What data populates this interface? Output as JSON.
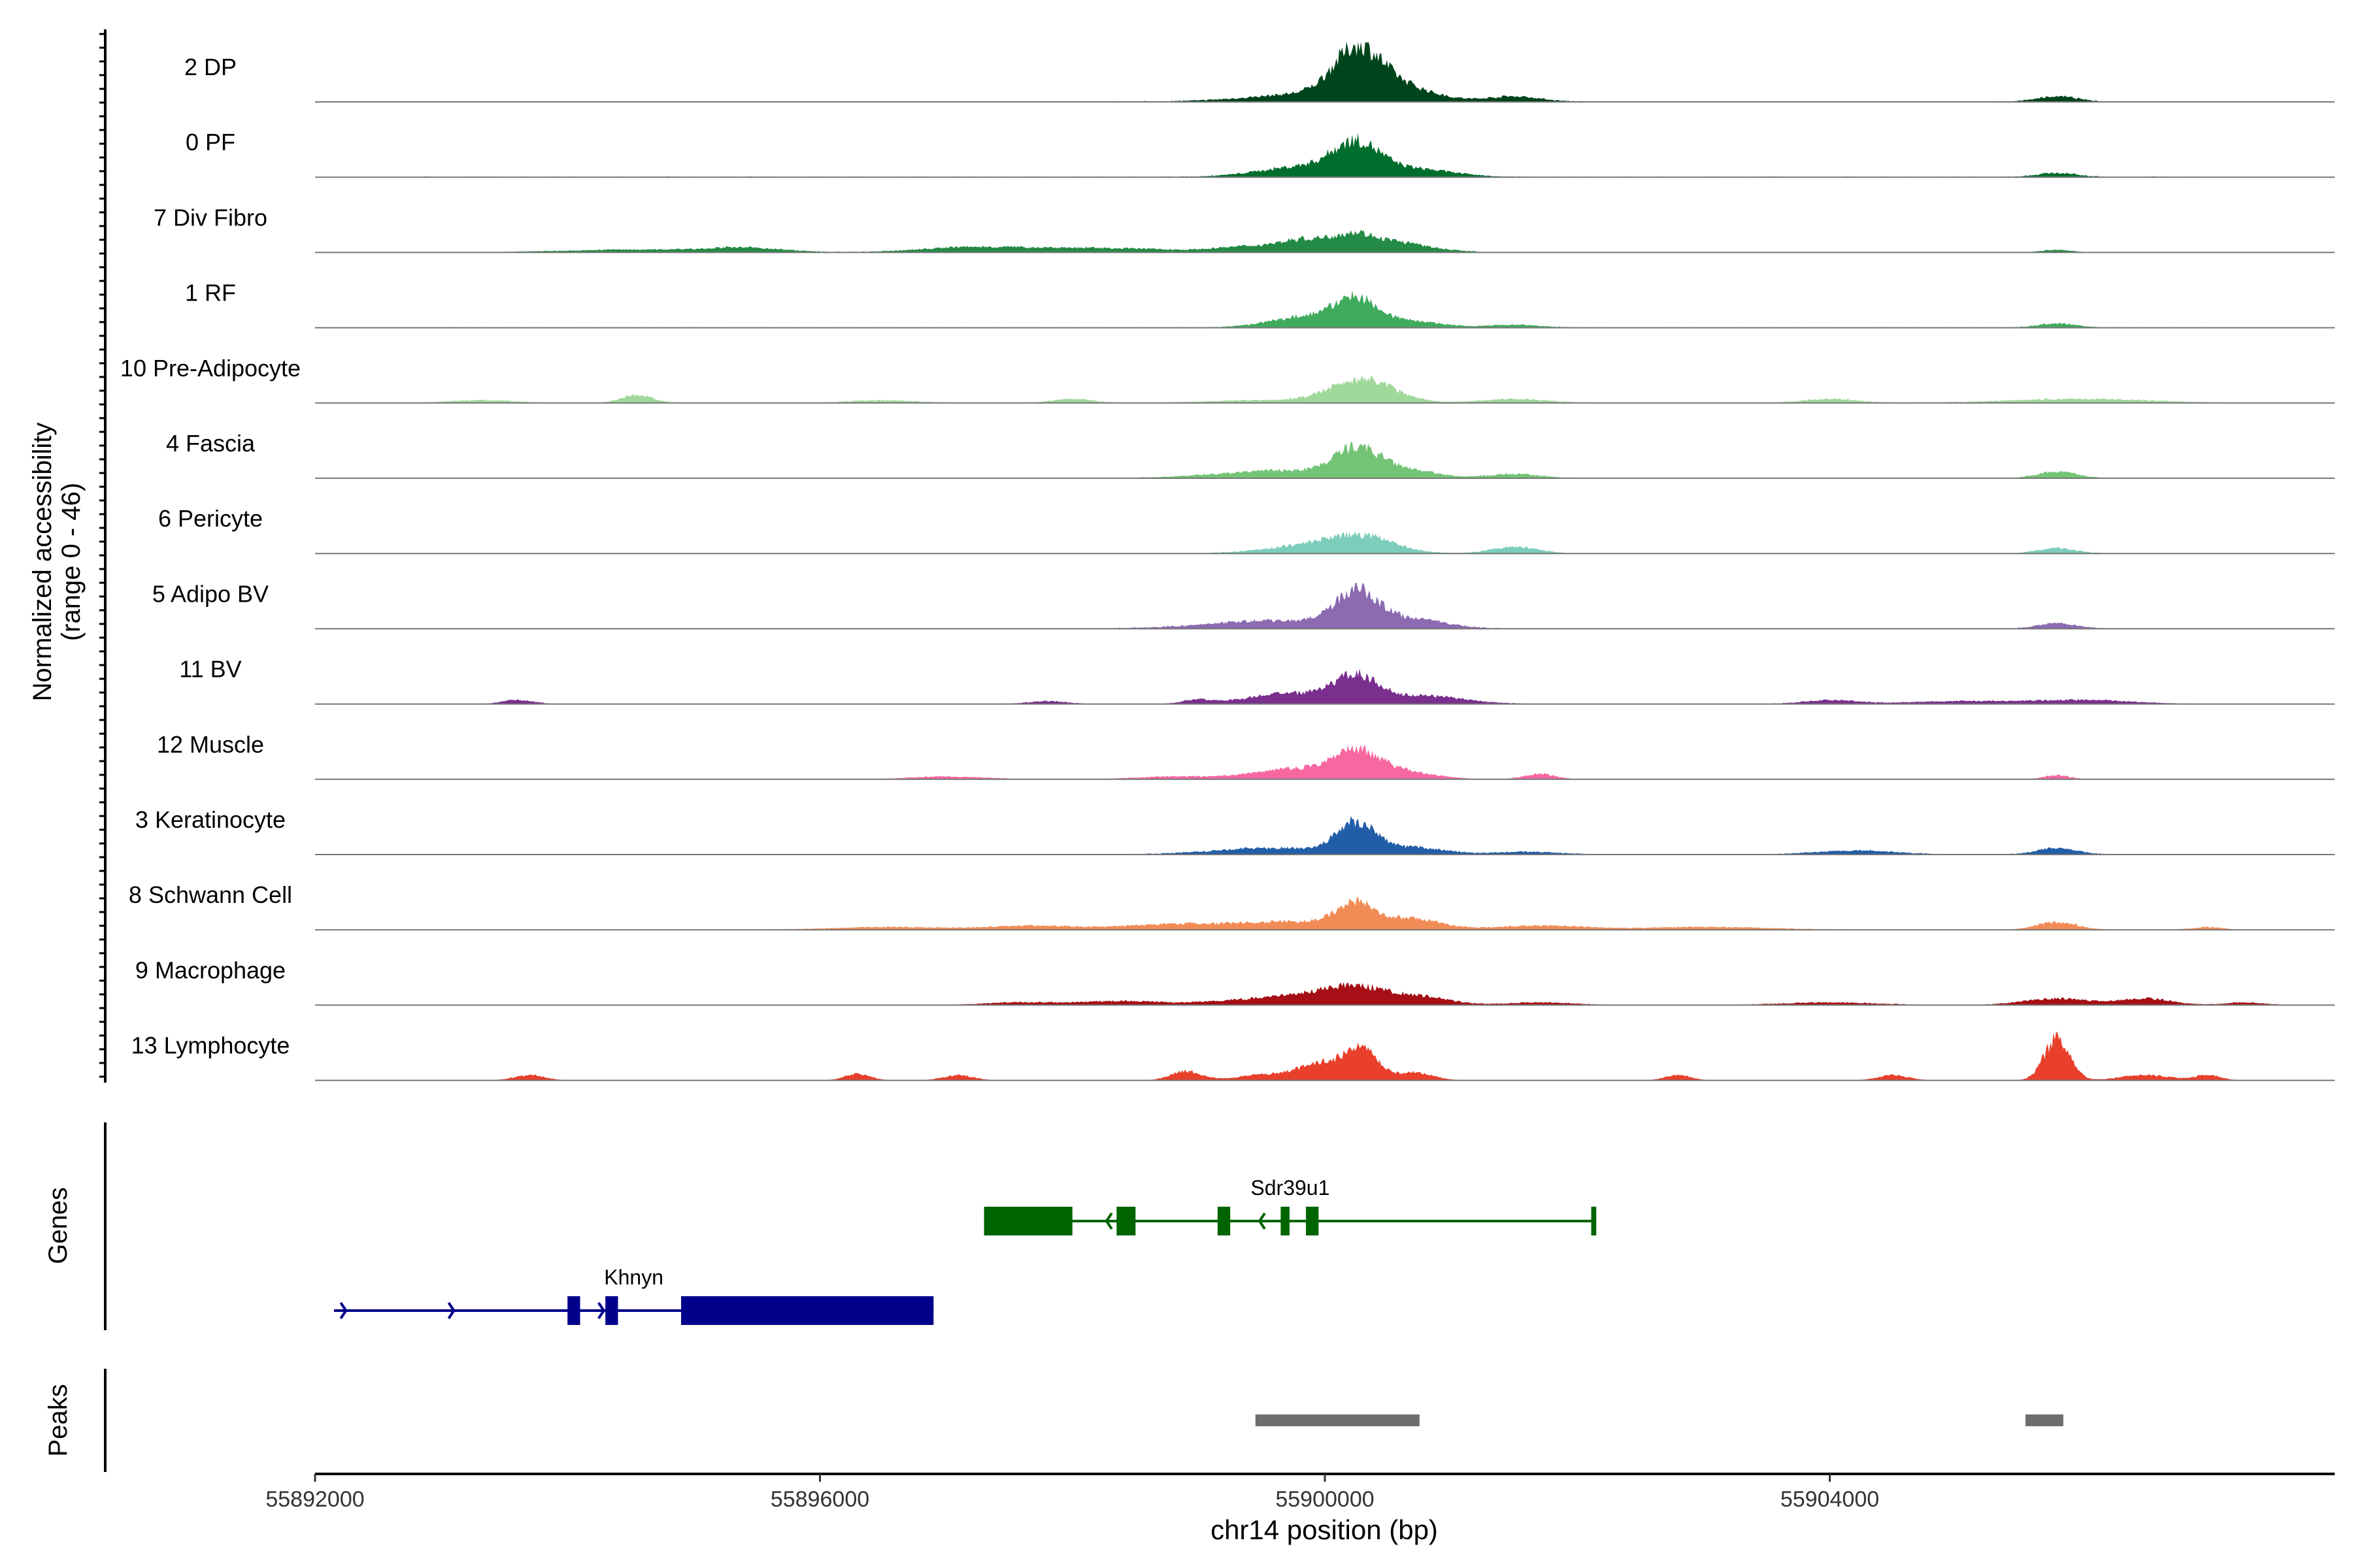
{
  "chart_data": {
    "type": "area",
    "title": "",
    "ylabel": "Normalized accessibility",
    "ylabel_range": "(range 0 - 46)",
    "xlabel": "chr14 position (bp)",
    "xlim": [
      55892000,
      55908000
    ],
    "ylim": [
      0,
      46
    ],
    "x_ticks": [
      55892000,
      55896000,
      55900000,
      55904000
    ],
    "x_tick_labels": [
      "55892000",
      "55896000",
      "55900000",
      "55904000"
    ],
    "tracks": [
      {
        "name": "2 DP",
        "color": "#00441b",
        "peaks": [
          [
            55899950,
            6,
            500
          ],
          [
            55900250,
            30,
            180
          ],
          [
            55900500,
            12,
            300
          ],
          [
            55901500,
            4,
            200
          ],
          [
            55905800,
            4,
            160
          ]
        ],
        "noise": [
          55894000,
          55907000,
          0.5
        ]
      },
      {
        "name": "0 PF",
        "color": "#006d2c",
        "peaks": [
          [
            55899850,
            8,
            350
          ],
          [
            55900250,
            22,
            180
          ],
          [
            55900700,
            6,
            300
          ],
          [
            55905800,
            3,
            150
          ]
        ],
        "noise": [
          55892800,
          55907000,
          0.5
        ]
      },
      {
        "name": "7 Div Fibro",
        "color": "#238b45",
        "peaks": [
          [
            55894500,
            2,
            600
          ],
          [
            55895400,
            3,
            300
          ],
          [
            55897100,
            3,
            350
          ],
          [
            55897800,
            3,
            450
          ],
          [
            55898600,
            2,
            400
          ],
          [
            55899300,
            3,
            200
          ],
          [
            55899850,
            10,
            250
          ],
          [
            55900250,
            11,
            160
          ],
          [
            55900600,
            7,
            200
          ],
          [
            55901000,
            1,
            150
          ],
          [
            55905800,
            2,
            120
          ]
        ],
        "noise": [
          55894200,
          55901200,
          0.4
        ]
      },
      {
        "name": "1 RF",
        "color": "#41ab5d",
        "peaks": [
          [
            55899900,
            9,
            300
          ],
          [
            55900250,
            18,
            160
          ],
          [
            55900650,
            5,
            250
          ],
          [
            55901500,
            2,
            200
          ],
          [
            55905800,
            3,
            150
          ]
        ],
        "noise": [
          55893000,
          55907000,
          0.4
        ]
      },
      {
        "name": "10 Pre-Adipocyte",
        "color": "#a1d99b",
        "peaks": [
          [
            55893300,
            2,
            250
          ],
          [
            55894550,
            6,
            120
          ],
          [
            55896500,
            2,
            250
          ],
          [
            55898000,
            3,
            150
          ],
          [
            55899500,
            2,
            400
          ],
          [
            55900300,
            18,
            250
          ],
          [
            55901500,
            3,
            250
          ],
          [
            55904000,
            3,
            200
          ],
          [
            55906000,
            3,
            550
          ]
        ],
        "noise": [
          55893000,
          55906500,
          0.3
        ]
      },
      {
        "name": "4 Fascia",
        "color": "#74c476",
        "peaks": [
          [
            55899700,
            6,
            500
          ],
          [
            55900250,
            19,
            170
          ],
          [
            55900600,
            6,
            250
          ],
          [
            55901500,
            3,
            200
          ],
          [
            55905800,
            5,
            150
          ]
        ],
        "noise": [
          55893000,
          55907000,
          0.4
        ]
      },
      {
        "name": "6 Pericyte",
        "color": "#7ccdbb",
        "peaks": [
          [
            55899900,
            6,
            350
          ],
          [
            55900300,
            11,
            250
          ],
          [
            55901500,
            5,
            180
          ],
          [
            55905800,
            4,
            150
          ]
        ],
        "noise": [
          55893000,
          55906500,
          0.3
        ]
      },
      {
        "name": "5 Adipo BV",
        "color": "#8c6bb1",
        "peaks": [
          [
            55899600,
            6,
            500
          ],
          [
            55900250,
            26,
            170
          ],
          [
            55900700,
            7,
            250
          ],
          [
            55905800,
            4,
            150
          ]
        ],
        "noise": [
          55892800,
          55907000,
          0.5
        ]
      },
      {
        "name": "11 BV",
        "color": "#7a2f8f",
        "peaks": [
          [
            55893600,
            3,
            120
          ],
          [
            55897800,
            2,
            150
          ],
          [
            55899000,
            3,
            120
          ],
          [
            55899700,
            8,
            300
          ],
          [
            55900250,
            20,
            180
          ],
          [
            55900800,
            6,
            300
          ],
          [
            55904000,
            3,
            200
          ],
          [
            55905000,
            2,
            400
          ],
          [
            55906000,
            3,
            400
          ]
        ],
        "noise": [
          55893500,
          55906300,
          0.3
        ]
      },
      {
        "name": "12 Muscle",
        "color": "#f768a1",
        "peaks": [
          [
            55897000,
            2,
            300
          ],
          [
            55898800,
            2,
            300
          ],
          [
            55899800,
            8,
            350
          ],
          [
            55900250,
            17,
            180
          ],
          [
            55900600,
            6,
            250
          ],
          [
            55901700,
            4,
            120
          ],
          [
            55905800,
            3,
            100
          ]
        ],
        "noise": [
          55896800,
          55906000,
          0.2
        ]
      },
      {
        "name": "3 Keratinocyte",
        "color": "#225ea8",
        "peaks": [
          [
            55899600,
            5,
            450
          ],
          [
            55900250,
            23,
            150
          ],
          [
            55900700,
            5,
            250
          ],
          [
            55901600,
            2,
            250
          ],
          [
            55904200,
            3,
            300
          ],
          [
            55905800,
            5,
            150
          ]
        ],
        "noise": [
          55892800,
          55906500,
          0.4
        ]
      },
      {
        "name": "8 Schwann Cell",
        "color": "#f28c57",
        "peaks": [
          [
            55896500,
            2,
            400
          ],
          [
            55897700,
            3,
            400
          ],
          [
            55898800,
            4,
            350
          ],
          [
            55899700,
            6,
            400
          ],
          [
            55900250,
            18,
            160
          ],
          [
            55900700,
            8,
            220
          ],
          [
            55901700,
            3,
            350
          ],
          [
            55903000,
            2,
            500
          ],
          [
            55905800,
            6,
            150
          ],
          [
            55907000,
            2,
            120
          ]
        ],
        "noise": [
          55893500,
          55907000,
          0.3
        ]
      },
      {
        "name": "9 Macrophage",
        "color": "#a50f15",
        "peaks": [
          [
            55897600,
            2,
            300
          ],
          [
            55898400,
            3,
            300
          ],
          [
            55899300,
            3,
            300
          ],
          [
            55899900,
            8,
            300
          ],
          [
            55900250,
            10,
            200
          ],
          [
            55900700,
            7,
            250
          ],
          [
            55901700,
            2,
            250
          ],
          [
            55904000,
            2,
            350
          ],
          [
            55905800,
            5,
            250
          ],
          [
            55906500,
            5,
            200
          ],
          [
            55907300,
            2,
            150
          ]
        ],
        "noise": [
          55897300,
          55907300,
          0.3
        ]
      },
      {
        "name": "13 Lymphocyte",
        "color": "#e8402b",
        "peaks": [
          [
            55893700,
            4,
            120
          ],
          [
            55896300,
            5,
            100
          ],
          [
            55897100,
            4,
            120
          ],
          [
            55898900,
            7,
            120
          ],
          [
            55899500,
            4,
            200
          ],
          [
            55900000,
            14,
            200
          ],
          [
            55900300,
            20,
            120
          ],
          [
            55900700,
            6,
            150
          ],
          [
            55902800,
            4,
            100
          ],
          [
            55904500,
            4,
            120
          ],
          [
            55905800,
            32,
            100
          ],
          [
            55906500,
            4,
            200
          ],
          [
            55907000,
            4,
            100
          ]
        ],
        "noise": null
      }
    ],
    "genes_label": "Genes",
    "genes": [
      {
        "name": "Sdr39u1",
        "color": "#006400",
        "strand": "-",
        "start": 55897300,
        "end": 55902150,
        "exons": [
          [
            55897300,
            55898000,
            1
          ],
          [
            55898350,
            55898500,
            1
          ],
          [
            55899150,
            55899250,
            1
          ],
          [
            55899650,
            55899720,
            1
          ],
          [
            55899850,
            55899950,
            1
          ],
          [
            55902110,
            55902150,
            1
          ]
        ]
      },
      {
        "name": "Khnyn",
        "color": "#00008b",
        "strand": "+",
        "start": 55892150,
        "end": 55896900,
        "exons": [
          [
            55894000,
            55894100,
            1
          ],
          [
            55894300,
            55894400,
            1
          ],
          [
            55894900,
            55896900,
            1
          ]
        ]
      }
    ],
    "peaks_label": "Peaks",
    "peak_regions": [
      [
        55899450,
        55900750
      ],
      [
        55905550,
        55905850
      ]
    ]
  }
}
